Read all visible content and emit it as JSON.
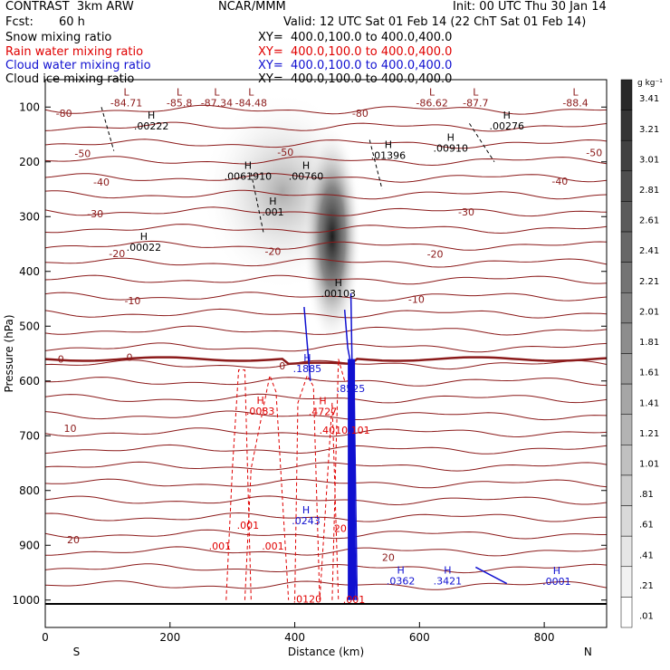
{
  "header": {
    "model": "CONTRAST  3km ARW",
    "center": "NCAR/MMM",
    "init": "Init: 00 UTC Thu 30 Jan 14",
    "fcst_label": "Fcst:",
    "fcst_value": "60 h",
    "valid": "Valid: 12 UTC Sat 01 Feb 14 (22 ChT Sat 01 Feb 14)"
  },
  "fields": [
    {
      "name": "Snow mixing ratio",
      "xy": "XY=  400.0,100.0 to 400.0,400.0",
      "color": "#000000"
    },
    {
      "name": "Rain water mixing ratio",
      "xy": "XY=  400.0,100.0 to 400.0,400.0",
      "color": "#e00000"
    },
    {
      "name": "Cloud water mixing ratio",
      "xy": "XY=  400.0,100.0 to 400.0,400.0",
      "color": "#1010d0"
    },
    {
      "name": "Cloud ice mixing ratio",
      "xy": "XY=  400.0,100.0 to 400.0,400.0",
      "color": "#000000"
    }
  ],
  "colors": {
    "temperature": "#8b1a1a",
    "rain": "#e00000",
    "cloud_water": "#1010d0",
    "cloud_ice": "#000000",
    "snow_shade": "#000000"
  },
  "chart_data": {
    "type": "heatmap",
    "xlabel": "Distance (km)",
    "ylabel": "Pressure (hPa)",
    "xlim": [
      0,
      900
    ],
    "ylim": [
      1050,
      50
    ],
    "x_ticks": [
      0,
      200,
      400,
      600,
      800
    ],
    "y_ticks": [
      100,
      200,
      300,
      400,
      500,
      600,
      700,
      800,
      900,
      1000
    ],
    "x_end_labels": {
      "left": "S",
      "right": "N"
    },
    "colorbar": {
      "unit": "g kg⁻¹",
      "labels": [
        "3.41",
        "3.21",
        "3.01",
        "2.81",
        "2.61",
        "2.41",
        "2.21",
        "2.01",
        "1.81",
        "1.61",
        "1.41",
        "1.21",
        "1.01",
        ".81",
        ".61",
        ".41",
        ".21",
        ".01"
      ]
    },
    "snow_field": {
      "max_value": 3.4,
      "core": {
        "x": 460,
        "p_top": 170,
        "p_bottom": 470
      }
    },
    "temperature_isotherms": {
      "labels": [
        {
          "text": "-80",
          "x": 30,
          "p": 111
        },
        {
          "text": "-80",
          "x": 505,
          "p": 111
        },
        {
          "text": "-50",
          "x": 60,
          "p": 185
        },
        {
          "text": "-50",
          "x": 385,
          "p": 182
        },
        {
          "text": "-50",
          "x": 880,
          "p": 183
        },
        {
          "text": "-40",
          "x": 90,
          "p": 237
        },
        {
          "text": "-40",
          "x": 825,
          "p": 235
        },
        {
          "text": "-30",
          "x": 80,
          "p": 295
        },
        {
          "text": "-30",
          "x": 675,
          "p": 291
        },
        {
          "text": "-20",
          "x": 115,
          "p": 367
        },
        {
          "text": "-20",
          "x": 365,
          "p": 363
        },
        {
          "text": "-20",
          "x": 625,
          "p": 368
        },
        {
          "text": "-10",
          "x": 140,
          "p": 453
        },
        {
          "text": "-10",
          "x": 595,
          "p": 451
        },
        {
          "text": "0",
          "x": 25,
          "p": 560
        },
        {
          "text": "0",
          "x": 135,
          "p": 557
        },
        {
          "text": "0",
          "x": 380,
          "p": 572
        },
        {
          "text": "10",
          "x": 40,
          "p": 686
        },
        {
          "text": "20",
          "x": 45,
          "p": 890
        },
        {
          "text": "20",
          "x": 550,
          "p": 922
        }
      ]
    },
    "extrema_labels": [
      {
        "type": "L",
        "value": "-84.71",
        "x": 130,
        "p": 92
      },
      {
        "type": "L",
        "value": "-85.8",
        "x": 215,
        "p": 92
      },
      {
        "type": "L",
        "value": "-87.34",
        "x": 275,
        "p": 92
      },
      {
        "type": "L",
        "value": "-84.48",
        "x": 330,
        "p": 92
      },
      {
        "type": "L",
        "value": "-86.62",
        "x": 620,
        "p": 92
      },
      {
        "type": "L",
        "value": "-87.7",
        "x": 690,
        "p": 92
      },
      {
        "type": "L",
        "value": "-88.4",
        "x": 850,
        "p": 92
      },
      {
        "type": "H",
        "value": ".00222",
        "x": 170,
        "p": 134
      },
      {
        "type": "H",
        "value": ".00276",
        "x": 740,
        "p": 134
      },
      {
        "type": "H",
        "value": ".00910",
        "x": 650,
        "p": 175
      },
      {
        "type": "H",
        "value": ".01396",
        "x": 550,
        "p": 188
      },
      {
        "type": "H",
        "value": ".0061910",
        "x": 325,
        "p": 226
      },
      {
        "type": "H",
        "value": ".00760",
        "x": 418,
        "p": 226
      },
      {
        "type": "H",
        "value": ".001",
        "x": 365,
        "p": 291
      },
      {
        "type": "H",
        "value": ".00022",
        "x": 158,
        "p": 356
      },
      {
        "type": "H",
        "value": ".00103",
        "x": 470,
        "p": 440
      },
      {
        "type": "H",
        "value": ".1885",
        "x": 420,
        "p": 577
      },
      {
        "type": "H",
        "value": ".8525",
        "x": 490,
        "p": 614
      },
      {
        "type": "H",
        "value": ".0083",
        "x": 345,
        "p": 655
      },
      {
        "type": "H",
        "value": ".4727",
        "x": 445,
        "p": 656
      },
      {
        "type": "H",
        "value": ".0243",
        "x": 418,
        "p": 855
      },
      {
        "type": "H",
        "value": ".0362",
        "x": 570,
        "p": 965
      },
      {
        "type": "H",
        "value": ".3421",
        "x": 645,
        "p": 965
      },
      {
        "type": "H",
        "value": ".0001",
        "x": 820,
        "p": 966
      }
    ],
    "rain_labels": [
      {
        "text": ".001",
        "x": 325,
        "p": 863
      },
      {
        "text": ".001",
        "x": 280,
        "p": 901
      },
      {
        "text": ".001",
        "x": 365,
        "p": 901
      },
      {
        "text": ".0120",
        "x": 420,
        "p": 998
      },
      {
        "text": ".001",
        "x": 495,
        "p": 999
      },
      {
        "text": ".4010.101",
        "x": 480,
        "p": 690
      },
      {
        "text": "20",
        "x": 473,
        "p": 869
      }
    ],
    "rain_contours": [
      {
        "x_points": [
          320,
          330,
          360,
          370,
          390
        ],
        "p_points": [
          1000,
          760,
          590,
          620,
          1000
        ]
      },
      {
        "x_points": [
          290,
          300,
          310,
          320,
          330
        ],
        "p_points": [
          1000,
          760,
          580,
          580,
          1000
        ]
      },
      {
        "x_points": [
          400,
          405,
          420,
          430,
          440,
          460,
          470
        ],
        "p_points": [
          1000,
          640,
          590,
          610,
          1000,
          640,
          1000
        ]
      },
      {
        "x_points": [
          460,
          470,
          480,
          490,
          495
        ],
        "p_points": [
          1000,
          560,
          600,
          600,
          1000
        ]
      }
    ],
    "cloud_water_contours": [
      {
        "x_points": [
          490,
          498
        ],
        "p_points": [
          440,
          1000
        ]
      },
      {
        "x_points": [
          480,
          485,
          495,
          500
        ],
        "p_points": [
          470,
          540,
          600,
          1000
        ]
      },
      {
        "x_points": [
          415,
          425
        ],
        "p_points": [
          465,
          600
        ]
      },
      {
        "x_points": [
          690,
          740
        ],
        "p_points": [
          940,
          970
        ]
      }
    ],
    "cloud_ice_contours": [
      {
        "x_points": [
          90,
          110
        ],
        "p_points": [
          100,
          180
        ]
      },
      {
        "x_points": [
          330,
          350
        ],
        "p_points": [
          220,
          330
        ]
      },
      {
        "x_points": [
          520,
          540
        ],
        "p_points": [
          160,
          250
        ]
      },
      {
        "x_points": [
          680,
          720
        ],
        "p_points": [
          130,
          200
        ]
      }
    ]
  }
}
